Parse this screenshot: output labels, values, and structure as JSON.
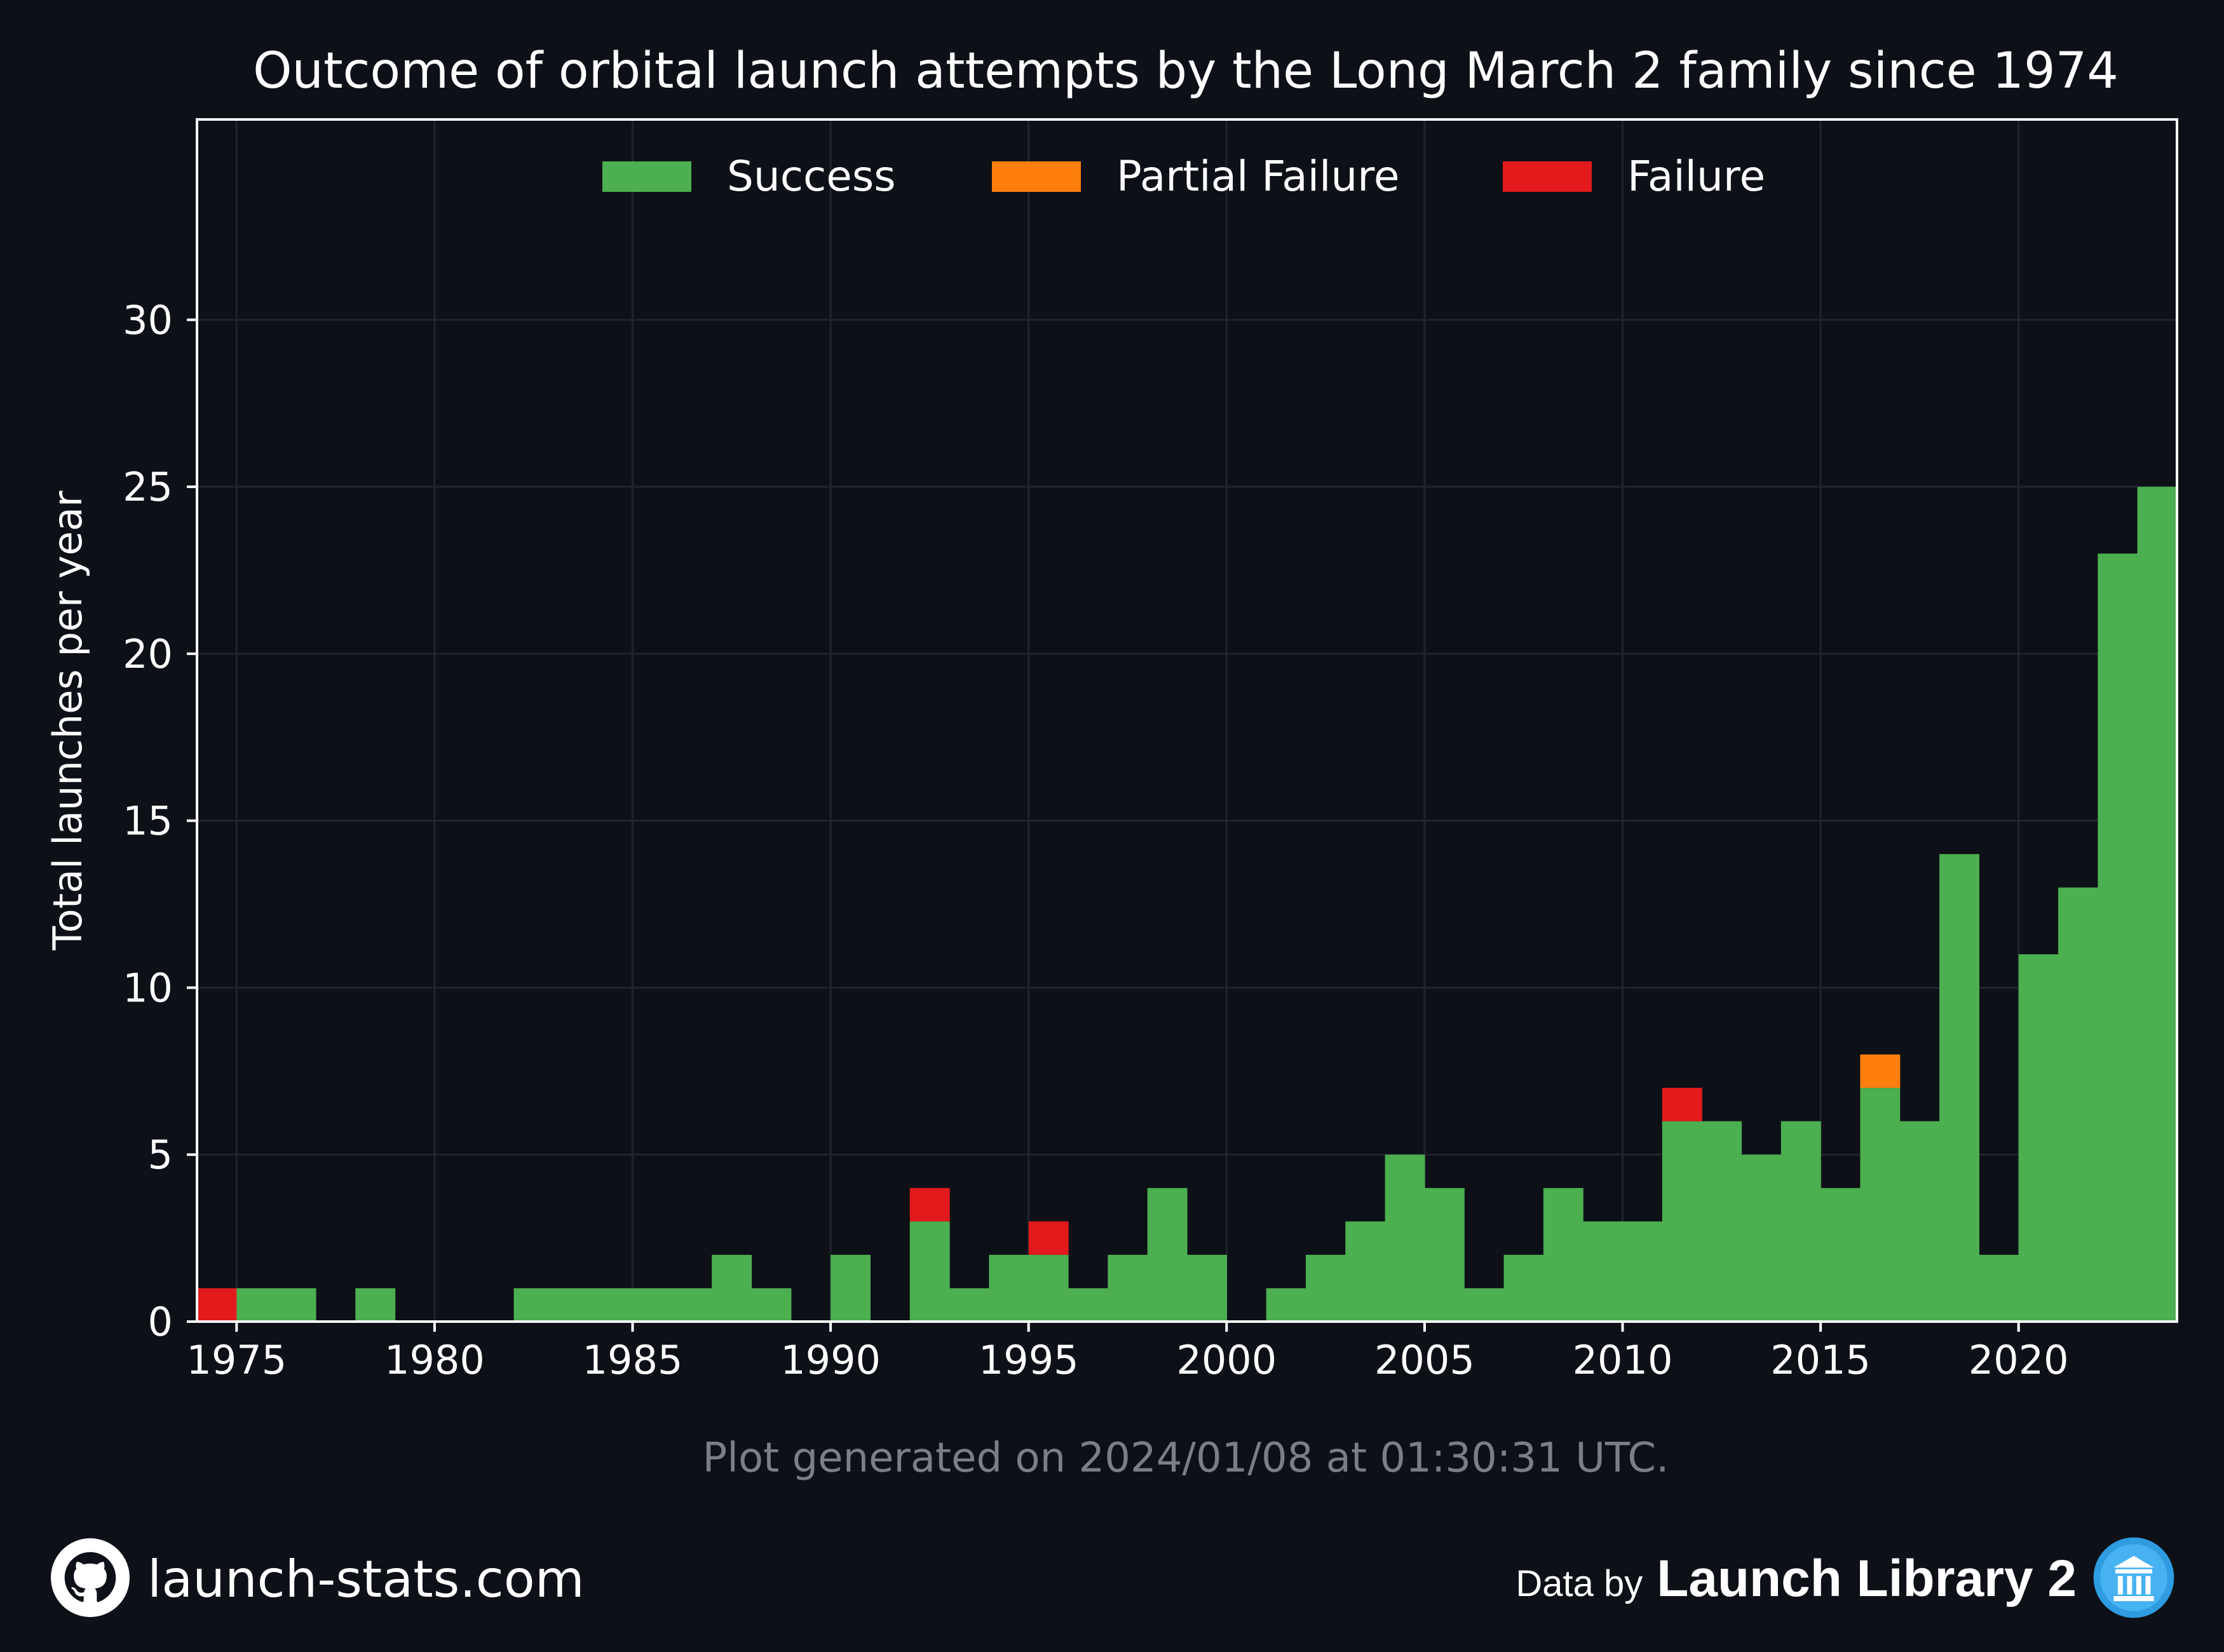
{
  "chart_data": {
    "type": "bar",
    "stacked": true,
    "title": "Outcome of orbital launch attempts by the Long March 2 family since 1974",
    "ylabel": "Total launches per year",
    "xlabel": "",
    "xlim": [
      1974,
      2024
    ],
    "ylim": [
      0,
      36
    ],
    "x_ticks": [
      "1975",
      "1980",
      "1985",
      "1990",
      "1995",
      "2000",
      "2005",
      "2010",
      "2015",
      "2020"
    ],
    "y_ticks": [
      "0",
      "5",
      "10",
      "15",
      "20",
      "25",
      "30"
    ],
    "grid": true,
    "legend_position": "top-center",
    "categories": [
      1974,
      1975,
      1976,
      1977,
      1978,
      1979,
      1980,
      1981,
      1982,
      1983,
      1984,
      1985,
      1986,
      1987,
      1988,
      1989,
      1990,
      1991,
      1992,
      1993,
      1994,
      1995,
      1996,
      1997,
      1998,
      1999,
      2000,
      2001,
      2002,
      2003,
      2004,
      2005,
      2006,
      2007,
      2008,
      2009,
      2010,
      2011,
      2012,
      2013,
      2014,
      2015,
      2016,
      2017,
      2018,
      2019,
      2020,
      2021,
      2022,
      2023
    ],
    "series": [
      {
        "name": "Success",
        "color": "#4caf50",
        "values": [
          0,
          1,
          1,
          0,
          1,
          0,
          0,
          0,
          1,
          1,
          1,
          1,
          1,
          2,
          1,
          0,
          2,
          0,
          3,
          1,
          2,
          2,
          1,
          2,
          4,
          2,
          0,
          1,
          2,
          3,
          5,
          4,
          1,
          2,
          4,
          3,
          3,
          6,
          6,
          5,
          6,
          4,
          7,
          6,
          14,
          2,
          11,
          13,
          23,
          25
        ]
      },
      {
        "name": "Partial Failure",
        "color": "#ff7f0e",
        "values": [
          0,
          0,
          0,
          0,
          0,
          0,
          0,
          0,
          0,
          0,
          0,
          0,
          0,
          0,
          0,
          0,
          0,
          0,
          0,
          0,
          0,
          0,
          0,
          0,
          0,
          0,
          0,
          0,
          0,
          0,
          0,
          0,
          0,
          0,
          0,
          0,
          0,
          0,
          0,
          0,
          0,
          0,
          1,
          0,
          0,
          0,
          0,
          0,
          0,
          0
        ]
      },
      {
        "name": "Failure",
        "color": "#e31a1c",
        "values": [
          1,
          0,
          0,
          0,
          0,
          0,
          0,
          0,
          0,
          0,
          0,
          0,
          0,
          0,
          0,
          0,
          0,
          0,
          1,
          0,
          0,
          1,
          0,
          0,
          0,
          0,
          0,
          0,
          0,
          0,
          0,
          0,
          0,
          0,
          0,
          0,
          0,
          1,
          0,
          0,
          0,
          0,
          0,
          0,
          0,
          0,
          0,
          0,
          0,
          0
        ]
      }
    ]
  },
  "footnote": "Plot generated on 2024/01/08 at 01:30:31 UTC.",
  "footer": {
    "site": "launch-stats.com",
    "site_icon": "github-icon",
    "data_by": "Data by",
    "library": "Launch Library 2",
    "library_icon": "library-logo-icon"
  },
  "colors": {
    "background": "#0d1017",
    "grid": "#20242c",
    "axes": "#ffffff",
    "footnote": "#7b7e84"
  }
}
